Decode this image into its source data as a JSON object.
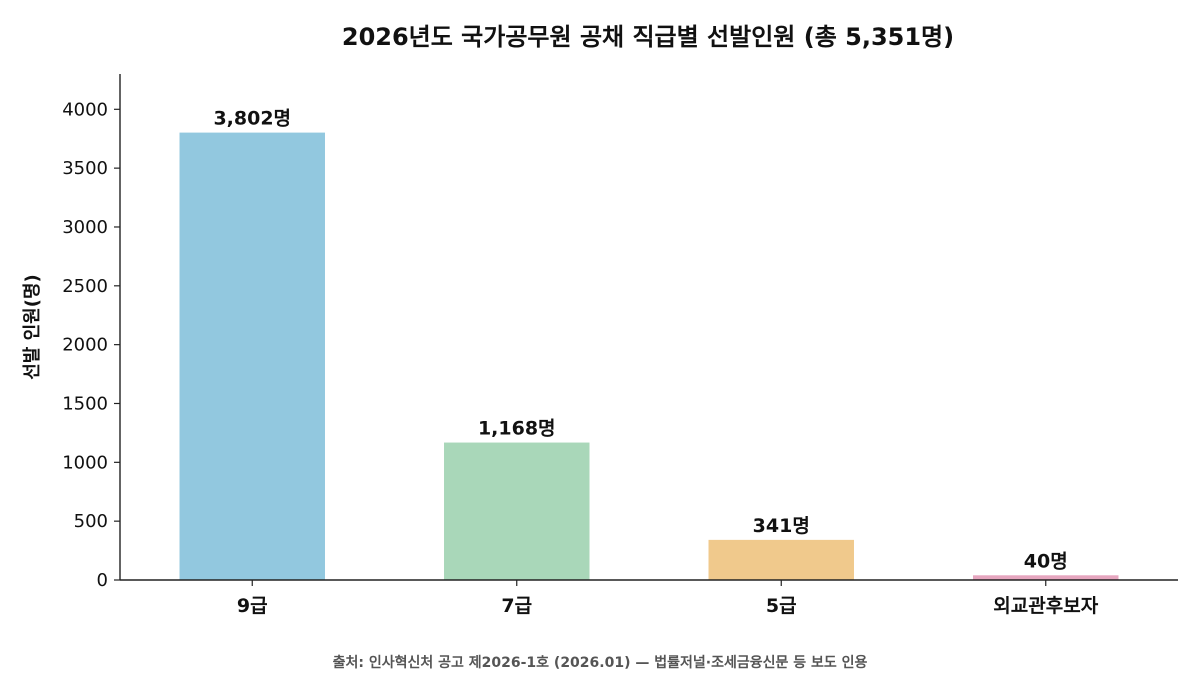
{
  "chart_data": {
    "type": "bar",
    "title": "2026년도 국가공무원 공채 직급별 선발인원 (총 5,351명)",
    "xlabel": "",
    "ylabel": "선발 인원(명)",
    "categories": [
      "9급",
      "7급",
      "5급",
      "외교관후보자"
    ],
    "values": [
      3802,
      1168,
      341,
      40
    ],
    "data_labels": [
      "3,802명",
      "1,168명",
      "341명",
      "40명"
    ],
    "colors": [
      "#92c8df",
      "#a9d7b9",
      "#f0c98c",
      "#e6a6bf"
    ],
    "ylim": [
      0,
      4300
    ],
    "yticks": [
      0,
      500,
      1000,
      1500,
      2000,
      2500,
      3000,
      3500,
      4000
    ],
    "grid": false,
    "legend": "none"
  },
  "source_note": "출처: 인사혁신처 공고 제2026-1호 (2026.01) — 법률저널·조세금융신문 등 보도 인용"
}
